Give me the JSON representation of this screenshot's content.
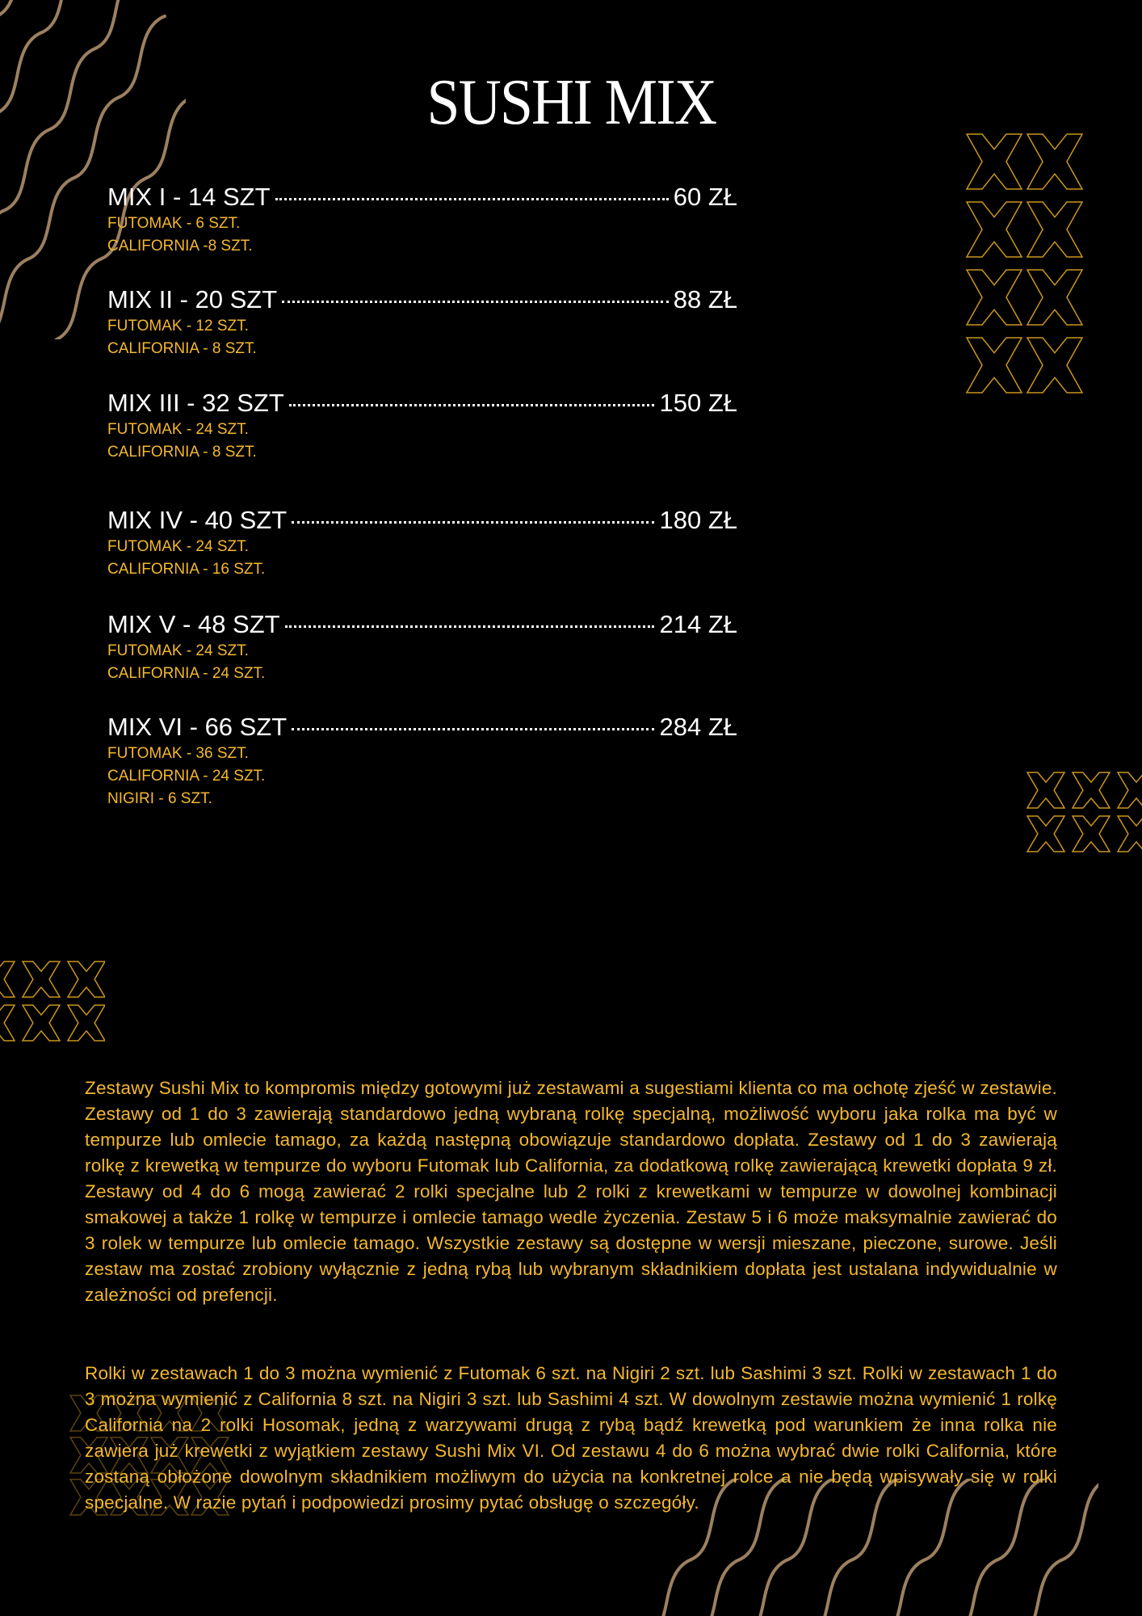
{
  "title": "SUSHI MIX",
  "colors": {
    "background": "#000000",
    "accent": "#f5b82e",
    "wave": "#9c8060",
    "text": "#ffffff"
  },
  "items": [
    {
      "name": "MIX I - 14 SZT",
      "price": "60 ZŁ",
      "contents": [
        "FUTOMAK - 6 SZT.",
        "CALIFORNIA -8 SZT."
      ]
    },
    {
      "name": "MIX II - 20 SZT",
      "price": "88 ZŁ",
      "contents": [
        "FUTOMAK - 12 SZT.",
        "CALIFORNIA - 8 SZT."
      ]
    },
    {
      "name": "MIX III - 32 SZT",
      "price": "150 ZŁ",
      "contents": [
        "FUTOMAK - 24 SZT.",
        "CALIFORNIA - 8 SZT."
      ]
    },
    {
      "name": "MIX IV - 40 SZT",
      "price": "180 ZŁ",
      "contents": [
        "FUTOMAK - 24 SZT.",
        "CALIFORNIA - 16 SZT."
      ]
    },
    {
      "name": "MIX V - 48 SZT",
      "price": "214 ZŁ",
      "contents": [
        "FUTOMAK - 24 SZT.",
        "CALIFORNIA - 24 SZT."
      ]
    },
    {
      "name": "MIX VI - 66 SZT",
      "price": "284 ZŁ",
      "contents": [
        "FUTOMAK - 36 SZT.",
        "CALIFORNIA - 24 SZT.",
        "NIGIRI - 6 SZT."
      ]
    }
  ],
  "paragraphs": [
    "Zestawy Sushi Mix to kompromis między gotowymi już zestawami a sugestiami klienta co ma ochotę zjeść w zestawie.  Zestawy od 1 do 3 zawierają standardowo jedną wybraną rolkę specjalną, możliwość wyboru jaka rolka ma być w tempurze lub omlecie tamago, za każdą następną obowiązuje standardowo dopłata. Zestawy od 1 do 3 zawierają rolkę z krewetką w tempurze do wyboru Futomak lub California, za dodatkową rolkę zawierającą krewetki dopłata 9 zł. Zestawy od 4 do 6 mogą zawierać 2 rolki specjalne lub 2 rolki z krewetkami w tempurze w dowolnej kombinacji smakowej a także 1 rolkę w tempurze i omlecie tamago wedle życzenia. Zestaw 5 i 6 może maksymalnie zawierać do 3 rolek w tempurze lub omlecie tamago. Wszystkie zestawy są dostępne w wersji mieszane, pieczone, surowe. Jeśli zestaw ma zostać zrobiony wyłącznie z jedną rybą lub wybranym składnikiem dopłata jest ustalana indywidualnie w zależności od prefencji.",
    "Rolki w zestawach 1 do 3 można wymienić z Futomak 6 szt. na Nigiri 2 szt. lub Sashimi 3 szt. Rolki w zestawach 1 do 3 można wymienić z California 8 szt. na Nigiri 3 szt. lub Sashimi 4 szt. W dowolnym zestawie można wymienić 1 rolkę California na 2 rolki Hosomak, jedną z warzywami drugą z rybą bądź krewetką pod warunkiem że inna rolka nie zawiera już krewetki z wyjątkiem zestawy Sushi Mix VI. Od zestawu 4 do 6 można wybrać dwie rolki California, które zostaną obłożone dowolnym składnikiem możliwym do użycia na konkretnej rolce a nie będą wpisywały się w rolki specjalne. W razie pytań i podpowiedzi prosimy pytać obsługę o szczegóły."
  ]
}
